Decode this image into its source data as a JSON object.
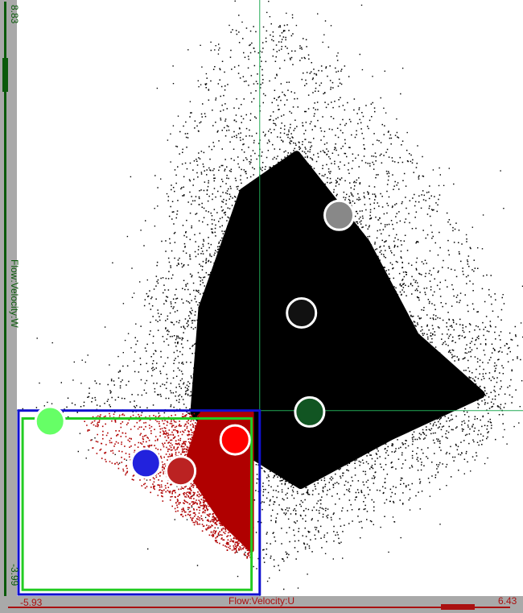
{
  "chart_data": {
    "type": "scatter",
    "x_label": "Flow:Velocity:U",
    "y_label": "Flow:Velocity:W",
    "x_min_label": "-5.93",
    "x_max_label": "6.43",
    "y_min_label": "-3.99",
    "y_max_label": "8.83",
    "xlim": [
      -5.93,
      6.43
    ],
    "ylim": [
      -3.99,
      8.83
    ],
    "crosshair": {
      "x": 0.0,
      "y": 0.0
    },
    "selection_boxes": [
      {
        "name": "blue-selection",
        "color": "#1010d0",
        "x": [
          -5.93,
          0.0
        ],
        "y": [
          -3.99,
          0.0
        ]
      },
      {
        "name": "green-selection",
        "color": "#22cc22",
        "x": [
          -5.83,
          -0.2
        ],
        "y": [
          -3.89,
          -0.17
        ]
      }
    ],
    "point_cloud": {
      "color": "#000000",
      "highlight_color": "#b00000",
      "dense_core": [
        [
          -1.6,
          -0.05
        ],
        [
          -1.4,
          2.2
        ],
        [
          -0.4,
          4.7
        ],
        [
          0.9,
          5.5
        ],
        [
          2.6,
          3.6
        ],
        [
          3.8,
          1.6
        ],
        [
          5.4,
          0.35
        ],
        [
          3.2,
          -0.55
        ],
        [
          1.0,
          -1.6
        ],
        [
          -1.2,
          -0.4
        ]
      ],
      "outer_hull": [
        [
          -5.3,
          0.05
        ],
        [
          -3.2,
          1.1
        ],
        [
          -2.4,
          3.8
        ],
        [
          -2.0,
          6.0
        ],
        [
          -0.7,
          8.2
        ],
        [
          0.3,
          8.5
        ],
        [
          1.8,
          7.8
        ],
        [
          3.0,
          6.4
        ],
        [
          4.3,
          4.8
        ],
        [
          5.6,
          3.0
        ],
        [
          6.4,
          1.6
        ],
        [
          6.3,
          0.4
        ],
        [
          5.8,
          -0.6
        ],
        [
          4.3,
          -1.7
        ],
        [
          2.3,
          -2.6
        ],
        [
          0.7,
          -3.3
        ],
        [
          0.1,
          -3.5
        ],
        [
          -0.7,
          -2.6
        ],
        [
          -2.2,
          -1.3
        ],
        [
          -4.4,
          -0.3
        ]
      ],
      "highlight_region": [
        [
          -4.4,
          -0.05
        ],
        [
          -0.2,
          -0.05
        ],
        [
          -0.2,
          -3.2
        ],
        [
          -0.8,
          -3.0
        ],
        [
          -2.3,
          -2.0
        ],
        [
          -4.1,
          -0.9
        ]
      ]
    },
    "markers": [
      {
        "name": "light-green-marker",
        "x": -5.12,
        "y": -0.23,
        "color": "#66ff66",
        "outline": "#ffffff"
      },
      {
        "name": "red-marker",
        "x": -0.6,
        "y": -0.63,
        "color": "#ff0000",
        "outline": "#ffffff"
      },
      {
        "name": "blue-marker",
        "x": -2.78,
        "y": -1.13,
        "color": "#2222dd",
        "outline": "#ffffff"
      },
      {
        "name": "dark-red-marker",
        "x": -1.93,
        "y": -1.3,
        "color": "#bb2222",
        "outline": "#ffffff"
      },
      {
        "name": "gray-marker",
        "x": 1.94,
        "y": 4.2,
        "color": "#888888",
        "outline": "#ffffff"
      },
      {
        "name": "black-marker",
        "x": 1.02,
        "y": 2.1,
        "color": "#111111",
        "outline": "#ffffff"
      },
      {
        "name": "dark-green-marker",
        "x": 1.22,
        "y": -0.03,
        "color": "#115522",
        "outline": "#ffffff"
      }
    ],
    "grid": false,
    "legend": "none"
  }
}
